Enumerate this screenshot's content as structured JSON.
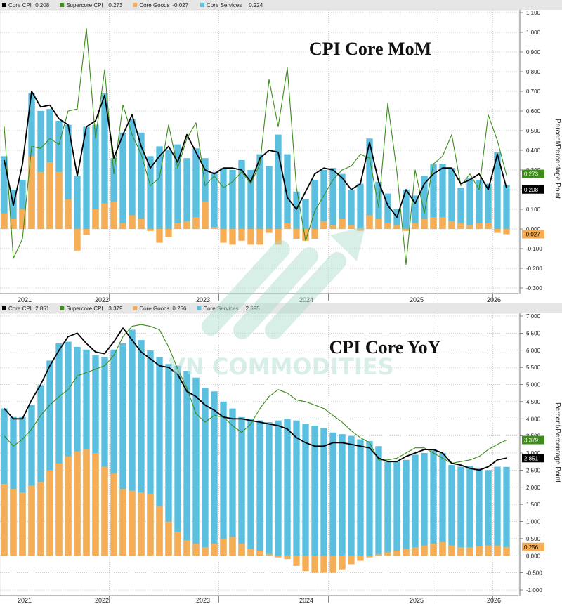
{
  "colors": {
    "core_cpi": "#000000",
    "supercore_cpi": "#3e8c1c",
    "core_goods": "#f6ae56",
    "core_services": "#5bbfe0",
    "legend_bg": "#e6e6e6",
    "grid": "#999999"
  },
  "watermark": {
    "text": "VN COMMODITIES",
    "icon": "upward-arrow-logo"
  },
  "chart_data": [
    {
      "type": "bar",
      "title": "CPI Core MoM",
      "ylabel": "Percent/Percentage Point",
      "ylim": [
        -0.3,
        1.1
      ],
      "yticks": [
        "1.100",
        "1.000",
        "0.900",
        "0.800",
        "0.700",
        "0.600",
        "0.500",
        "0.400",
        "0.300",
        "0.200",
        "0.100",
        "0.000",
        "-0.100",
        "-0.200",
        "-0.300"
      ],
      "year_labels": [
        "2021",
        "2022",
        "2023",
        "2024",
        "2025",
        "2026"
      ],
      "legend": [
        {
          "label": "Core CPI",
          "value": "0.208"
        },
        {
          "label": "Supercore CPI",
          "value": "0.273"
        },
        {
          "label": "Core Goods",
          "value": "-0.027"
        },
        {
          "label": "Core Services",
          "value": "0.224"
        }
      ],
      "value_tags": [
        {
          "text": "0.273",
          "series": "supercore_cpi",
          "value": 0.273
        },
        {
          "text": "0.208",
          "series": "core_cpi",
          "value": 0.208
        },
        {
          "text": "-0.027",
          "series": "core_goods",
          "value": -0.027
        }
      ],
      "series": [
        {
          "name": "Core Services",
          "values": [
            0.37,
            0.2,
            0.25,
            0.69,
            0.6,
            0.61,
            0.55,
            0.53,
            0.27,
            0.52,
            0.53,
            0.69,
            0.36,
            0.49,
            0.56,
            0.49,
            0.37,
            0.42,
            0.4,
            0.43,
            0.36,
            0.41,
            0.36,
            0.29,
            0.31,
            0.3,
            0.35,
            0.3,
            0.38,
            0.32,
            0.48,
            0.38,
            0.19,
            0.15,
            0.25,
            0.3,
            0.31,
            0.28,
            0.2,
            0.23,
            0.46,
            0.24,
            0.18,
            0.1,
            0.2,
            0.17,
            0.27,
            0.33,
            0.33,
            0.31,
            0.21,
            0.26,
            0.25,
            0.23,
            0.39,
            0.224
          ]
        },
        {
          "name": "Core Goods",
          "values": [
            0.08,
            0.05,
            0.1,
            0.37,
            0.29,
            0.34,
            0.29,
            0.15,
            -0.11,
            -0.03,
            0.1,
            0.13,
            0.14,
            0.03,
            0.07,
            0.05,
            -0.01,
            -0.07,
            -0.04,
            0.03,
            0.04,
            0.06,
            0.14,
            0.01,
            -0.07,
            -0.08,
            -0.06,
            -0.08,
            -0.08,
            -0.02,
            -0.08,
            0.03,
            -0.05,
            -0.06,
            -0.05,
            0.04,
            0.02,
            0.05,
            0.02,
            -0.01,
            0.07,
            0.05,
            0.03,
            0.02,
            -0.01,
            0.03,
            0.05,
            0.06,
            0.06,
            0.04,
            0.03,
            0.02,
            0.03,
            0.03,
            -0.02,
            -0.027
          ]
        },
        {
          "name": "Core CPI",
          "values": [
            0.35,
            0.12,
            0.33,
            0.7,
            0.62,
            0.63,
            0.56,
            0.53,
            0.27,
            0.52,
            0.55,
            0.68,
            0.36,
            0.48,
            0.58,
            0.42,
            0.31,
            0.37,
            0.42,
            0.34,
            0.48,
            0.39,
            0.3,
            0.28,
            0.31,
            0.31,
            0.3,
            0.24,
            0.36,
            0.4,
            0.39,
            0.16,
            0.1,
            0.19,
            0.28,
            0.31,
            0.3,
            0.26,
            0.2,
            0.23,
            0.44,
            0.24,
            0.12,
            0.06,
            0.2,
            0.13,
            0.23,
            0.28,
            0.31,
            0.31,
            0.23,
            0.25,
            0.28,
            0.2,
            0.38,
            0.208
          ]
        },
        {
          "name": "Supercore CPI",
          "values": [
            0.52,
            -0.15,
            -0.05,
            0.42,
            0.41,
            0.46,
            0.43,
            0.6,
            0.61,
            1.02,
            0.46,
            0.81,
            0.28,
            0.63,
            0.48,
            0.38,
            0.22,
            0.26,
            0.53,
            0.31,
            0.46,
            0.54,
            0.22,
            0.27,
            0.21,
            0.24,
            0.29,
            0.23,
            0.33,
            0.76,
            0.52,
            0.82,
            0.21,
            -0.06,
            0.09,
            0.17,
            0.25,
            0.3,
            0.32,
            0.38,
            0.36,
            0.11,
            0.64,
            0.29,
            -0.18,
            0.3,
            0.08,
            0.33,
            0.37,
            0.48,
            0.22,
            0.28,
            0.2,
            0.58,
            0.45,
            0.273
          ]
        }
      ]
    },
    {
      "type": "bar",
      "title": "CPI Core YoY",
      "ylabel": "Percent/Percentage Point",
      "ylim": [
        -1.0,
        7.0
      ],
      "yticks": [
        "7.000",
        "6.500",
        "6.000",
        "5.500",
        "5.000",
        "4.500",
        "4.000",
        "3.500",
        "3.000",
        "2.500",
        "2.000",
        "1.500",
        "1.000",
        "0.500",
        "0.000",
        "-0.500",
        "-1.000"
      ],
      "year_labels": [
        "2021",
        "2022",
        "2023",
        "2024",
        "2025",
        "2026"
      ],
      "legend": [
        {
          "label": "Core CPI",
          "value": "2.851"
        },
        {
          "label": "Supercore CPI",
          "value": "3.379"
        },
        {
          "label": "Core Goods",
          "value": "0.256"
        },
        {
          "label": "Core Services",
          "value": "2.595"
        }
      ],
      "value_tags": [
        {
          "text": "3.379",
          "series": "supercore_cpi",
          "value": 3.379
        },
        {
          "text": "2.851",
          "series": "core_cpi",
          "value": 2.851
        },
        {
          "text": "0.256",
          "series": "core_goods",
          "value": 0.256
        }
      ],
      "series": [
        {
          "name": "Core Services",
          "values": [
            4.3,
            4.05,
            4.05,
            4.4,
            4.98,
            5.7,
            6.2,
            6.25,
            6.1,
            6.02,
            5.85,
            5.8,
            6.02,
            6.2,
            6.6,
            6.3,
            6.0,
            5.8,
            5.6,
            5.55,
            5.4,
            5.2,
            4.9,
            4.8,
            4.5,
            4.3,
            4.05,
            4.0,
            3.95,
            3.9,
            3.95,
            4.0,
            3.95,
            3.85,
            3.8,
            3.72,
            3.6,
            3.55,
            3.5,
            3.4,
            3.35,
            3.2,
            2.75,
            2.75,
            2.8,
            2.95,
            3.0,
            3.1,
            3.0,
            2.65,
            2.6,
            2.62,
            2.55,
            2.5,
            2.6,
            2.595
          ]
        },
        {
          "name": "Core Goods",
          "values": [
            2.1,
            1.95,
            1.85,
            2.05,
            2.15,
            2.5,
            2.7,
            2.9,
            3.05,
            3.1,
            3.0,
            2.6,
            2.4,
            1.95,
            1.9,
            1.85,
            1.8,
            1.45,
            1.0,
            0.7,
            0.45,
            0.35,
            0.25,
            0.35,
            0.5,
            0.55,
            0.35,
            0.2,
            0.15,
            0.05,
            -0.05,
            -0.1,
            -0.3,
            -0.45,
            -0.5,
            -0.5,
            -0.5,
            -0.4,
            -0.25,
            -0.15,
            -0.05,
            0.05,
            0.1,
            0.15,
            0.2,
            0.25,
            0.3,
            0.35,
            0.4,
            0.3,
            0.25,
            0.25,
            0.28,
            0.3,
            0.3,
            0.256
          ]
        },
        {
          "name": "Core CPI",
          "values": [
            4.3,
            4.0,
            4.0,
            4.55,
            5.0,
            5.55,
            6.0,
            6.4,
            6.5,
            6.2,
            5.95,
            5.9,
            6.25,
            6.65,
            6.3,
            5.95,
            5.75,
            5.55,
            5.5,
            5.3,
            4.8,
            4.65,
            4.4,
            4.25,
            4.05,
            4.0,
            4.0,
            3.95,
            3.9,
            3.85,
            3.8,
            3.7,
            3.45,
            3.3,
            3.2,
            3.2,
            3.3,
            3.3,
            3.25,
            3.2,
            3.15,
            2.85,
            2.75,
            2.75,
            2.9,
            3.0,
            3.1,
            3.1,
            3.0,
            2.7,
            2.65,
            2.55,
            2.5,
            2.6,
            2.8,
            2.851
          ]
        },
        {
          "name": "Supercore CPI",
          "values": [
            3.5,
            3.2,
            3.4,
            3.7,
            4.1,
            4.4,
            4.65,
            4.85,
            5.25,
            5.35,
            5.45,
            5.55,
            5.85,
            6.4,
            6.7,
            6.75,
            6.7,
            6.6,
            6.1,
            5.45,
            4.9,
            4.15,
            3.9,
            4.1,
            4.05,
            3.8,
            3.6,
            3.85,
            4.3,
            4.65,
            4.85,
            4.75,
            4.55,
            4.5,
            4.4,
            4.3,
            4.1,
            3.9,
            3.65,
            3.45,
            3.3,
            2.8,
            2.8,
            2.85,
            3.0,
            3.15,
            3.15,
            3.0,
            2.85,
            2.7,
            2.75,
            2.8,
            2.9,
            3.1,
            3.25,
            3.379
          ]
        }
      ]
    }
  ]
}
